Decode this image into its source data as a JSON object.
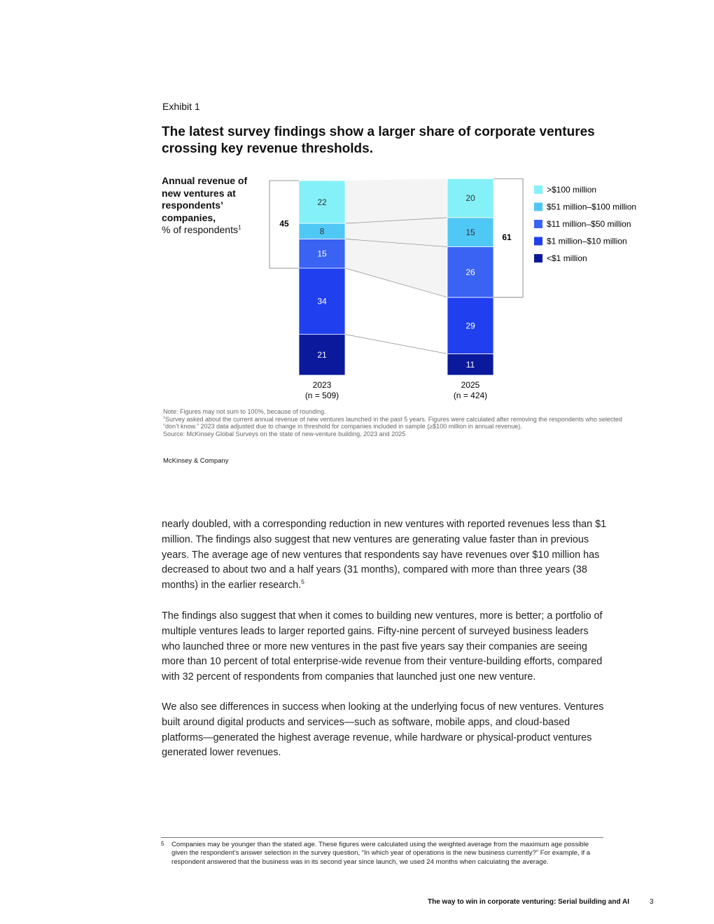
{
  "exhibit": {
    "label": "Exhibit 1",
    "title": "The latest survey findings show a larger share of corporate ventures crossing key revenue thresholds.",
    "y_label": "Annual revenue of new ventures at respondents’ companies,",
    "y_unit": "% of respondents",
    "y_unit_marker": "1"
  },
  "chart_data": {
    "type": "stacked_bar",
    "categories": [
      "2023",
      "2025"
    ],
    "category_notes": [
      "(n = 509)",
      "(n = 424)"
    ],
    "series": [
      {
        "name": ">$100 million",
        "color": "#84f1f8",
        "values": [
          22,
          20
        ]
      },
      {
        "name": "$51 million–$100 million",
        "color": "#4fc8f6",
        "values": [
          8,
          15
        ]
      },
      {
        "name": "$11 million–$50 million",
        "color": "#3a63f3",
        "values": [
          15,
          26
        ]
      },
      {
        "name": "$1 million–$10 million",
        "color": "#2040ef",
        "values": [
          34,
          29
        ]
      },
      {
        "name": "<$1 million",
        "color": "#0b1a9c",
        "values": [
          21,
          11
        ]
      }
    ],
    "brackets": [
      45,
      61
    ]
  },
  "notes": {
    "note": "Note: Figures may not sum to 100%, because of rounding.",
    "footnote_marker": "1",
    "footnote": "Survey asked about the current annual revenue of new ventures launched in the past 5 years. Figures were calculated after removing the respondents who selected “don’t know.” 2023 data adjusted due to change in threshold for companies included in sample (≥$100 million in annual revenue).",
    "source": "Source: McKinsey Global Surveys on the state of new-venture building, 2023 and 2025",
    "brand": "McKinsey & Company"
  },
  "body": {
    "paragraph_1": "nearly doubled, with a corresponding reduction in new ventures with reported revenues less than $1 million. The findings also suggest that new ventures are generating value faster than in previous years. The average age of new ventures that respondents say have revenues over $10 million has decreased to about two and a half years (31 months), compared with more than three years (38 months) in the earlier research.",
    "paragraph_1_marker": "5",
    "paragraph_2": "The findings also suggest that when it comes to building new ventures, more is better; a portfolio of multiple ventures leads to larger reported gains. Fifty-nine percent of surveyed business leaders who launched three or more new ventures in the past five years say their companies are seeing more than 10 percent of total enterprise-wide revenue from their venture-building efforts, compared with 32 percent of respondents from companies that launched just one new venture.",
    "paragraph_3": "We also see differences in success when looking at the underlying focus of new ventures. Ventures built around digital products and services—such as software, mobile apps, and cloud-based platforms—generated the highest average revenue, while hardware or physical-product ventures generated lower revenues."
  },
  "footnote": {
    "marker": "5",
    "text": "Companies may be younger than the stated age. These figures were calculated using the weighted average from the maximum age possible given the respondent’s answer selection in the survey question, “In which year of operations is the new business currently?” For example, if a respondent answered that the business was in its second year since launch, we used 24 months when calculating the average."
  },
  "footer": {
    "title": "The way to win in corporate venturing: Serial building and AI",
    "page": "3"
  }
}
